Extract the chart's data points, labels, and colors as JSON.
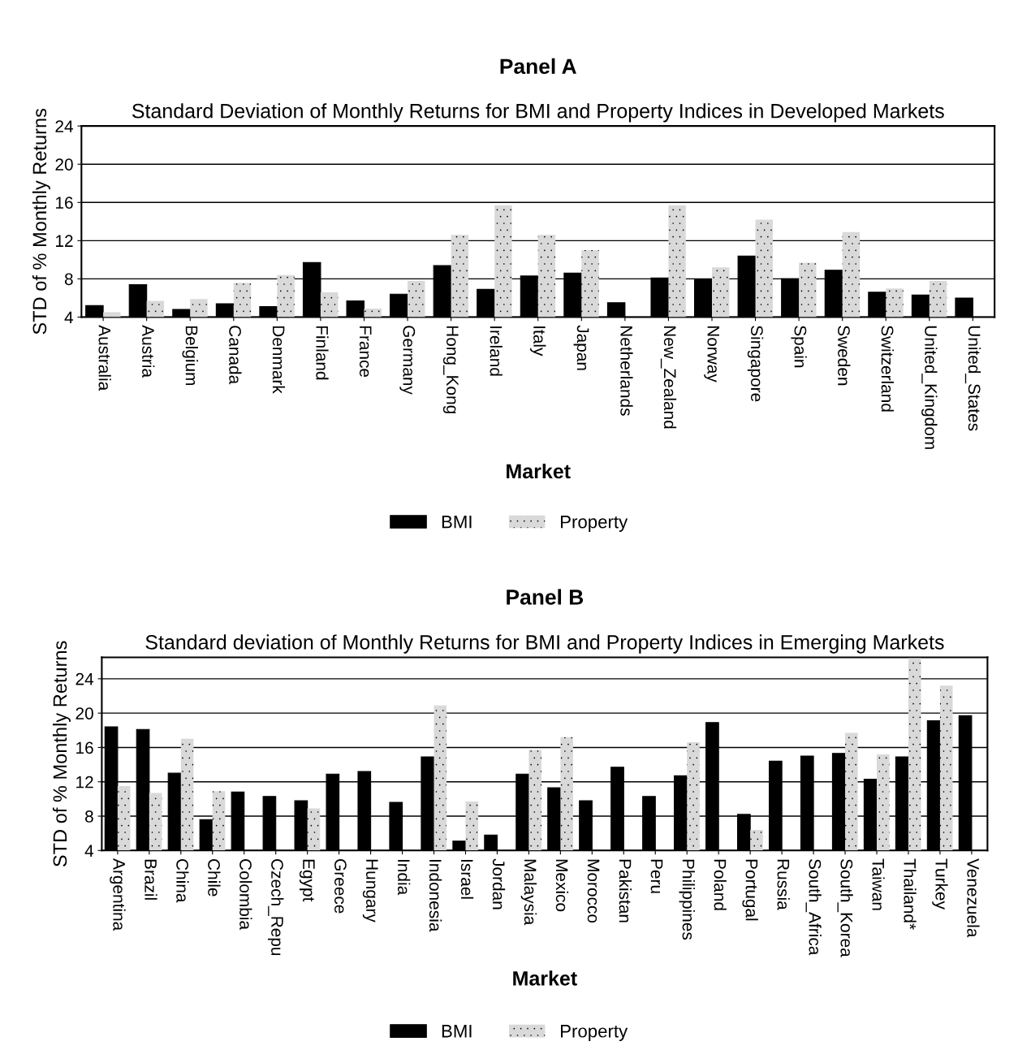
{
  "chart_data": [
    {
      "type": "bar",
      "title": "Panel A",
      "subtitle": "Standard Deviation of Monthly Returns for BMI and Property Indices in Developed Markets",
      "xlabel": "Market",
      "ylabel": "STD of % Monthly Returns",
      "categories": [
        "Australia",
        "Austria",
        "Belgium",
        "Canada",
        "Denmark",
        "Finland",
        "France",
        "Germany",
        "Hong_Kong",
        "Ireland",
        "Italy",
        "Japan",
        "Netherlands",
        "New_Zealand",
        "Norway",
        "Singapore",
        "Spain",
        "Sweden",
        "Switzerland",
        "United_Kingdom",
        "United_States"
      ],
      "series": [
        {
          "name": "BMI",
          "color": "#000000",
          "values": [
            5.2,
            7.4,
            4.8,
            5.4,
            5.1,
            9.7,
            5.7,
            6.4,
            9.4,
            6.9,
            8.3,
            8.6,
            5.5,
            8.1,
            7.9,
            10.4,
            8.0,
            8.9,
            6.6,
            6.3,
            6.0
          ]
        },
        {
          "name": "Property",
          "color": "#d9d9d9",
          "values": [
            4.5,
            5.7,
            5.9,
            7.6,
            8.4,
            6.6,
            4.9,
            7.8,
            12.6,
            15.7,
            12.6,
            11.0,
            null,
            15.7,
            9.2,
            14.2,
            9.7,
            12.9,
            7.0,
            7.8,
            null
          ]
        }
      ],
      "ylim": [
        4,
        24
      ],
      "yticks": [
        4,
        8,
        12,
        16,
        20,
        24
      ],
      "grid": "y",
      "legend": "bottom"
    },
    {
      "type": "bar",
      "title": "Panel B",
      "subtitle": "Standard deviation of Monthly Returns for BMI and Property Indices in Emerging Markets",
      "xlabel": "Market",
      "ylabel": "STD of % Monthly Returns",
      "categories": [
        "Argentina",
        "Brazil",
        "China",
        "Chile",
        "Colombia",
        "Czech_Repu",
        "Egypt",
        "Greece",
        "Hungary",
        "India",
        "Indonesia",
        "Israel",
        "Jordan",
        "Malaysia",
        "Mexico",
        "Morocco",
        "Pakistan",
        "Peru",
        "Philippines",
        "Poland",
        "Portugal",
        "Russia",
        "South_Africa",
        "South_Korea",
        "Taiwan",
        "Thailand*",
        "Turkey",
        "Venezuela"
      ],
      "series": [
        {
          "name": "BMI",
          "color": "#000000",
          "values": [
            18.4,
            18.1,
            13.0,
            7.6,
            10.8,
            10.3,
            9.8,
            12.9,
            13.2,
            9.6,
            14.9,
            5.1,
            5.8,
            12.9,
            11.3,
            9.8,
            13.7,
            10.3,
            12.7,
            18.9,
            8.2,
            14.4,
            15.0,
            15.3,
            12.3,
            14.9,
            19.1,
            19.7
          ]
        },
        {
          "name": "Property",
          "color": "#d9d9d9",
          "values": [
            11.5,
            10.7,
            17.0,
            10.9,
            null,
            null,
            8.9,
            null,
            null,
            null,
            20.9,
            9.7,
            null,
            15.7,
            17.2,
            null,
            null,
            null,
            16.6,
            null,
            6.4,
            null,
            null,
            17.7,
            15.2,
            26.4,
            23.2,
            null
          ]
        }
      ],
      "ylim": [
        4,
        26.5
      ],
      "yticks": [
        4,
        8,
        12,
        16,
        20,
        24
      ],
      "grid": "y",
      "legend": "bottom"
    }
  ]
}
